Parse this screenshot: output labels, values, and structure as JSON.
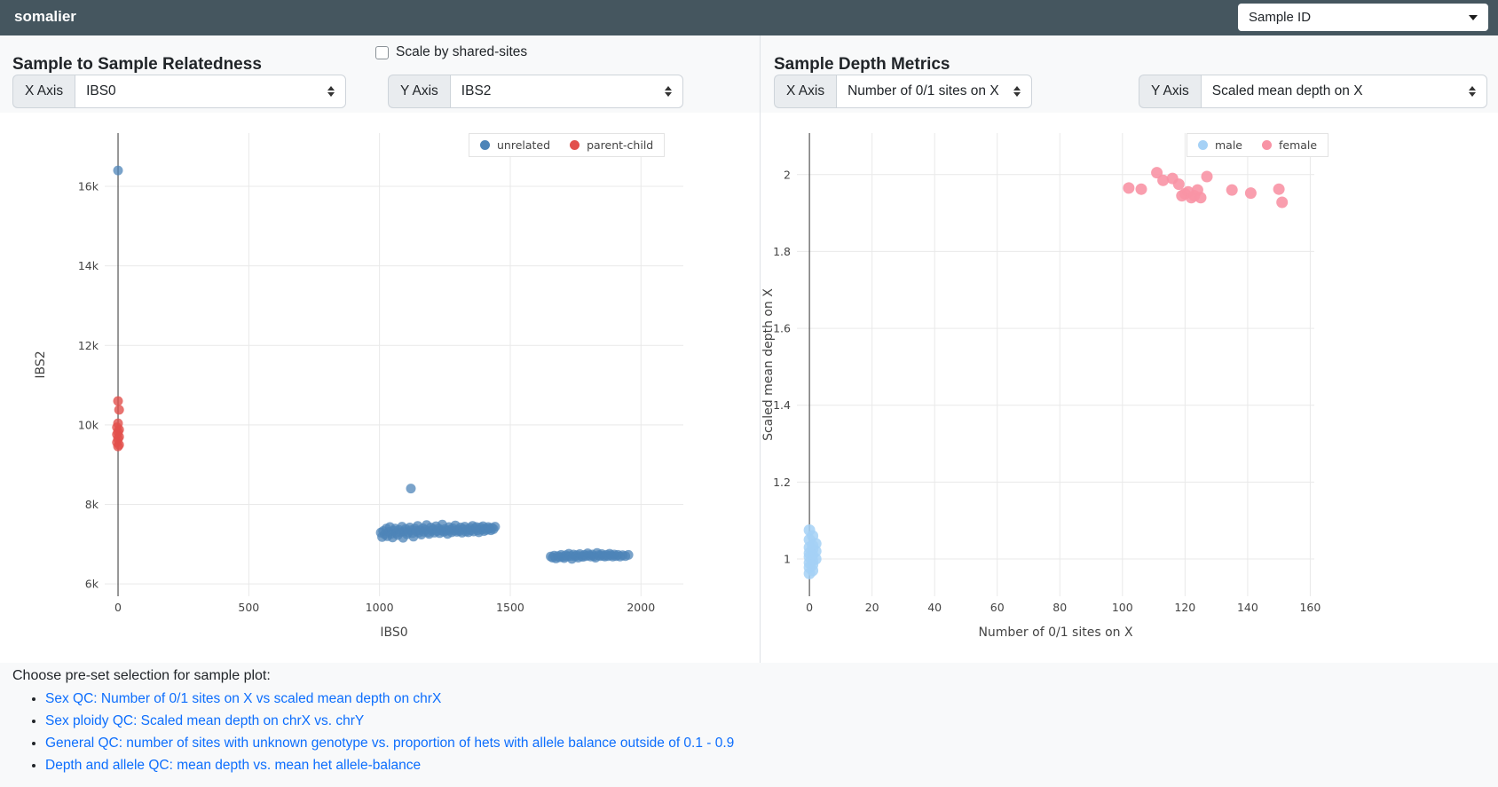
{
  "navbar": {
    "brand": "somalier",
    "sample_select": {
      "value": "Sample ID"
    }
  },
  "left_panel": {
    "title": "Sample to Sample Relatedness",
    "checkbox_label": "Scale by shared-sites",
    "checkbox_checked": false,
    "x_axis": {
      "label": "X Axis",
      "value": "IBS0"
    },
    "y_axis": {
      "label": "Y Axis",
      "value": "IBS2"
    }
  },
  "right_panel": {
    "title": "Sample Depth Metrics",
    "x_axis": {
      "label": "X Axis",
      "value": "Number of 0/1 sites on X"
    },
    "y_axis": {
      "label": "Y Axis",
      "value": "Scaled mean depth on X"
    }
  },
  "footer": {
    "heading": "Choose pre-set selection for sample plot:",
    "links": [
      "Sex QC: Number of 0/1 sites on X vs scaled mean depth on chrX",
      "Sex ploidy QC: Scaled mean depth on chrX vs. chrY",
      "General QC: number of sites with unknown genotype vs. proportion of hets with allele balance outside of 0.1 - 0.9",
      "Depth and allele QC: mean depth vs. mean het allele-balance"
    ]
  },
  "colors": {
    "navbar_bg": "#45565f",
    "page_bg": "#f8f9fa",
    "link_blue": "#0d6efd",
    "grid": "#e9e9e9",
    "zeroline": "#555555"
  },
  "chart_data": [
    {
      "type": "scatter",
      "title": "Sample to Sample Relatedness",
      "xlabel": "IBS0",
      "ylabel": "IBS2",
      "xlim": [
        -51,
        2162
      ],
      "ylim": [
        5690,
        17340
      ],
      "xticks": [
        0,
        500,
        1000,
        1500,
        2000
      ],
      "xtick_labels": [
        "0",
        "500",
        "1000",
        "1500",
        "2000"
      ],
      "yticks": [
        6000,
        8000,
        10000,
        12000,
        14000,
        16000
      ],
      "ytick_labels": [
        "6k",
        "8k",
        "10k",
        "12k",
        "14k",
        "16k"
      ],
      "grid": true,
      "legend_position": "top-right",
      "series": [
        {
          "name": "unrelated",
          "color": "#4d84b8",
          "opacity": 0.75,
          "points": [
            [
              0,
              16400
            ],
            [
              1120,
              8400
            ],
            [
              1005,
              7290
            ],
            [
              1010,
              7180
            ],
            [
              1014,
              7330
            ],
            [
              1020,
              7250
            ],
            [
              1026,
              7390
            ],
            [
              1030,
              7200
            ],
            [
              1036,
              7310
            ],
            [
              1040,
              7430
            ],
            [
              1045,
              7260
            ],
            [
              1050,
              7170
            ],
            [
              1055,
              7340
            ],
            [
              1060,
              7390
            ],
            [
              1064,
              7280
            ],
            [
              1070,
              7230
            ],
            [
              1075,
              7360
            ],
            [
              1080,
              7300
            ],
            [
              1086,
              7440
            ],
            [
              1090,
              7160
            ],
            [
              1095,
              7320
            ],
            [
              1100,
              7380
            ],
            [
              1105,
              7250
            ],
            [
              1110,
              7300
            ],
            [
              1116,
              7420
            ],
            [
              1120,
              7350
            ],
            [
              1126,
              7280
            ],
            [
              1130,
              7190
            ],
            [
              1135,
              7390
            ],
            [
              1140,
              7330
            ],
            [
              1146,
              7460
            ],
            [
              1150,
              7290
            ],
            [
              1155,
              7350
            ],
            [
              1160,
              7240
            ],
            [
              1166,
              7400
            ],
            [
              1170,
              7310
            ],
            [
              1176,
              7360
            ],
            [
              1180,
              7480
            ],
            [
              1186,
              7300
            ],
            [
              1190,
              7260
            ],
            [
              1196,
              7420
            ],
            [
              1200,
              7340
            ],
            [
              1206,
              7380
            ],
            [
              1210,
              7290
            ],
            [
              1216,
              7450
            ],
            [
              1220,
              7330
            ],
            [
              1226,
              7390
            ],
            [
              1230,
              7280
            ],
            [
              1236,
              7350
            ],
            [
              1240,
              7490
            ],
            [
              1246,
              7310
            ],
            [
              1250,
              7380
            ],
            [
              1256,
              7340
            ],
            [
              1260,
              7260
            ],
            [
              1266,
              7430
            ],
            [
              1270,
              7360
            ],
            [
              1276,
              7300
            ],
            [
              1280,
              7400
            ],
            [
              1286,
              7340
            ],
            [
              1290,
              7470
            ],
            [
              1296,
              7310
            ],
            [
              1300,
              7370
            ],
            [
              1306,
              7330
            ],
            [
              1310,
              7420
            ],
            [
              1316,
              7290
            ],
            [
              1320,
              7380
            ],
            [
              1326,
              7440
            ],
            [
              1330,
              7320
            ],
            [
              1336,
              7370
            ],
            [
              1340,
              7300
            ],
            [
              1346,
              7410
            ],
            [
              1350,
              7350
            ],
            [
              1356,
              7460
            ],
            [
              1360,
              7320
            ],
            [
              1366,
              7390
            ],
            [
              1370,
              7430
            ],
            [
              1376,
              7350
            ],
            [
              1380,
              7300
            ],
            [
              1386,
              7420
            ],
            [
              1390,
              7370
            ],
            [
              1396,
              7450
            ],
            [
              1400,
              7330
            ],
            [
              1406,
              7400
            ],
            [
              1410,
              7360
            ],
            [
              1416,
              7430
            ],
            [
              1420,
              7390
            ],
            [
              1426,
              7350
            ],
            [
              1430,
              7410
            ],
            [
              1436,
              7380
            ],
            [
              1442,
              7440
            ],
            [
              1655,
              6690
            ],
            [
              1662,
              6660
            ],
            [
              1668,
              6710
            ],
            [
              1675,
              6640
            ],
            [
              1682,
              6700
            ],
            [
              1688,
              6670
            ],
            [
              1695,
              6730
            ],
            [
              1700,
              6680
            ],
            [
              1706,
              6650
            ],
            [
              1712,
              6720
            ],
            [
              1718,
              6690
            ],
            [
              1724,
              6760
            ],
            [
              1730,
              6700
            ],
            [
              1736,
              6630
            ],
            [
              1742,
              6740
            ],
            [
              1748,
              6690
            ],
            [
              1754,
              6720
            ],
            [
              1760,
              6660
            ],
            [
              1766,
              6750
            ],
            [
              1772,
              6700
            ],
            [
              1778,
              6680
            ],
            [
              1784,
              6730
            ],
            [
              1790,
              6700
            ],
            [
              1796,
              6770
            ],
            [
              1802,
              6720
            ],
            [
              1808,
              6690
            ],
            [
              1814,
              6740
            ],
            [
              1820,
              6700
            ],
            [
              1826,
              6660
            ],
            [
              1832,
              6780
            ],
            [
              1838,
              6720
            ],
            [
              1844,
              6700
            ],
            [
              1850,
              6750
            ],
            [
              1856,
              6710
            ],
            [
              1862,
              6690
            ],
            [
              1868,
              6730
            ],
            [
              1874,
              6700
            ],
            [
              1880,
              6760
            ],
            [
              1886,
              6720
            ],
            [
              1892,
              6690
            ],
            [
              1898,
              6740
            ],
            [
              1905,
              6700
            ],
            [
              1912,
              6730
            ],
            [
              1920,
              6690
            ],
            [
              1930,
              6720
            ],
            [
              1940,
              6700
            ],
            [
              1952,
              6730
            ]
          ]
        },
        {
          "name": "parent-child",
          "color": "#e2504c",
          "opacity": 0.8,
          "points": [
            [
              0,
              10600
            ],
            [
              4,
              10380
            ],
            [
              0,
              10040
            ],
            [
              -4,
              9940
            ],
            [
              4,
              9880
            ],
            [
              0,
              9820
            ],
            [
              -4,
              9760
            ],
            [
              4,
              9700
            ],
            [
              0,
              9650
            ],
            [
              -4,
              9560
            ],
            [
              4,
              9500
            ],
            [
              0,
              9460
            ]
          ]
        }
      ]
    },
    {
      "type": "scatter",
      "title": "Sample Depth Metrics",
      "xlabel": "Number of 0/1 sites on X",
      "ylabel": "Scaled mean depth on X",
      "xlim": [
        -4,
        161.3
      ],
      "ylim": [
        0.903,
        2.108
      ],
      "xticks": [
        0,
        20,
        40,
        60,
        80,
        100,
        120,
        140,
        160
      ],
      "xtick_labels": [
        "0",
        "20",
        "40",
        "60",
        "80",
        "100",
        "120",
        "140",
        "160"
      ],
      "yticks": [
        1,
        1.2,
        1.4,
        1.6,
        1.8,
        2
      ],
      "ytick_labels": [
        "1",
        "1.2",
        "1.4",
        "1.6",
        "1.8",
        "2"
      ],
      "grid": true,
      "legend_position": "top-right",
      "series": [
        {
          "name": "male",
          "color": "#a5d1f6",
          "opacity": 0.85,
          "points": [
            [
              0,
              1.075
            ],
            [
              1,
              1.06
            ],
            [
              0,
              1.05
            ],
            [
              2,
              1.04
            ],
            [
              1,
              1.035
            ],
            [
              0,
              1.03
            ],
            [
              1,
              1.025
            ],
            [
              2,
              1.02
            ],
            [
              0,
              1.015
            ],
            [
              1,
              1.01
            ],
            [
              0,
              1.005
            ],
            [
              2,
              1.0
            ],
            [
              1,
              0.995
            ],
            [
              0,
              0.99
            ],
            [
              1,
              0.985
            ],
            [
              0,
              0.978
            ],
            [
              1,
              0.97
            ],
            [
              0,
              0.962
            ]
          ]
        },
        {
          "name": "female",
          "color": "#f893a5",
          "opacity": 0.9,
          "points": [
            [
              102,
              1.965
            ],
            [
              106,
              1.962
            ],
            [
              111,
              2.005
            ],
            [
              113,
              1.985
            ],
            [
              116,
              1.99
            ],
            [
              118,
              1.975
            ],
            [
              119,
              1.945
            ],
            [
              120,
              1.95
            ],
            [
              121,
              1.955
            ],
            [
              122,
              1.94
            ],
            [
              123,
              1.945
            ],
            [
              124,
              1.96
            ],
            [
              125,
              1.94
            ],
            [
              127,
              1.995
            ],
            [
              135,
              1.96
            ],
            [
              141,
              1.952
            ],
            [
              150,
              1.962
            ],
            [
              151,
              1.928
            ]
          ]
        }
      ]
    }
  ]
}
